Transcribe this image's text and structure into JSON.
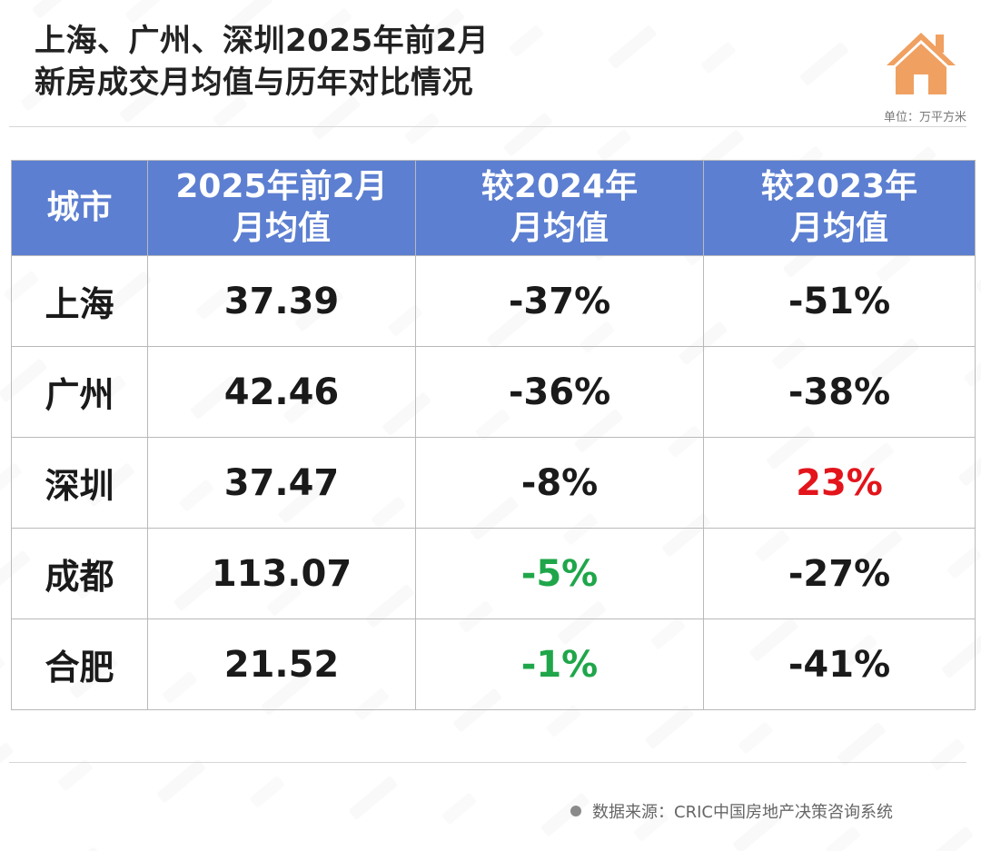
{
  "title": {
    "line1": "上海、广州、深圳2025年前2月",
    "line2": "新房成交月均值与历年对比情况"
  },
  "logo_icon": "house-icon",
  "unit_label": "单位：万平方米",
  "colors": {
    "header_bg": "#5c7fd1",
    "header_text": "#ffffff",
    "positive_red": "#e3141b",
    "decline_green": "#1fa64a",
    "house_orange": "#f0a060"
  },
  "chart_data": {
    "type": "table",
    "title": "上海、广州、深圳2025年前2月新房成交月均值与历年对比情况",
    "unit": "万平方米",
    "columns": [
      [
        "城市"
      ],
      [
        "2025年前2月",
        "月均值"
      ],
      [
        "较2024年",
        "月均值"
      ],
      [
        "较2023年",
        "月均值"
      ]
    ],
    "rows": [
      {
        "city": "上海",
        "avg": "37.39",
        "vs2024": "-37%",
        "vs2023": "-51%",
        "vs2024_color": "",
        "vs2023_color": ""
      },
      {
        "city": "广州",
        "avg": "42.46",
        "vs2024": "-36%",
        "vs2023": "-38%",
        "vs2024_color": "",
        "vs2023_color": ""
      },
      {
        "city": "深圳",
        "avg": "37.47",
        "vs2024": "-8%",
        "vs2023": "23%",
        "vs2024_color": "",
        "vs2023_color": "red"
      },
      {
        "city": "成都",
        "avg": "113.07",
        "vs2024": "-5%",
        "vs2023": "-27%",
        "vs2024_color": "green",
        "vs2023_color": ""
      },
      {
        "city": "合肥",
        "avg": "21.52",
        "vs2024": "-1%",
        "vs2023": "-41%",
        "vs2024_color": "green",
        "vs2023_color": ""
      }
    ]
  },
  "source": "数据来源：CRIC中国房地产决策咨询系统"
}
